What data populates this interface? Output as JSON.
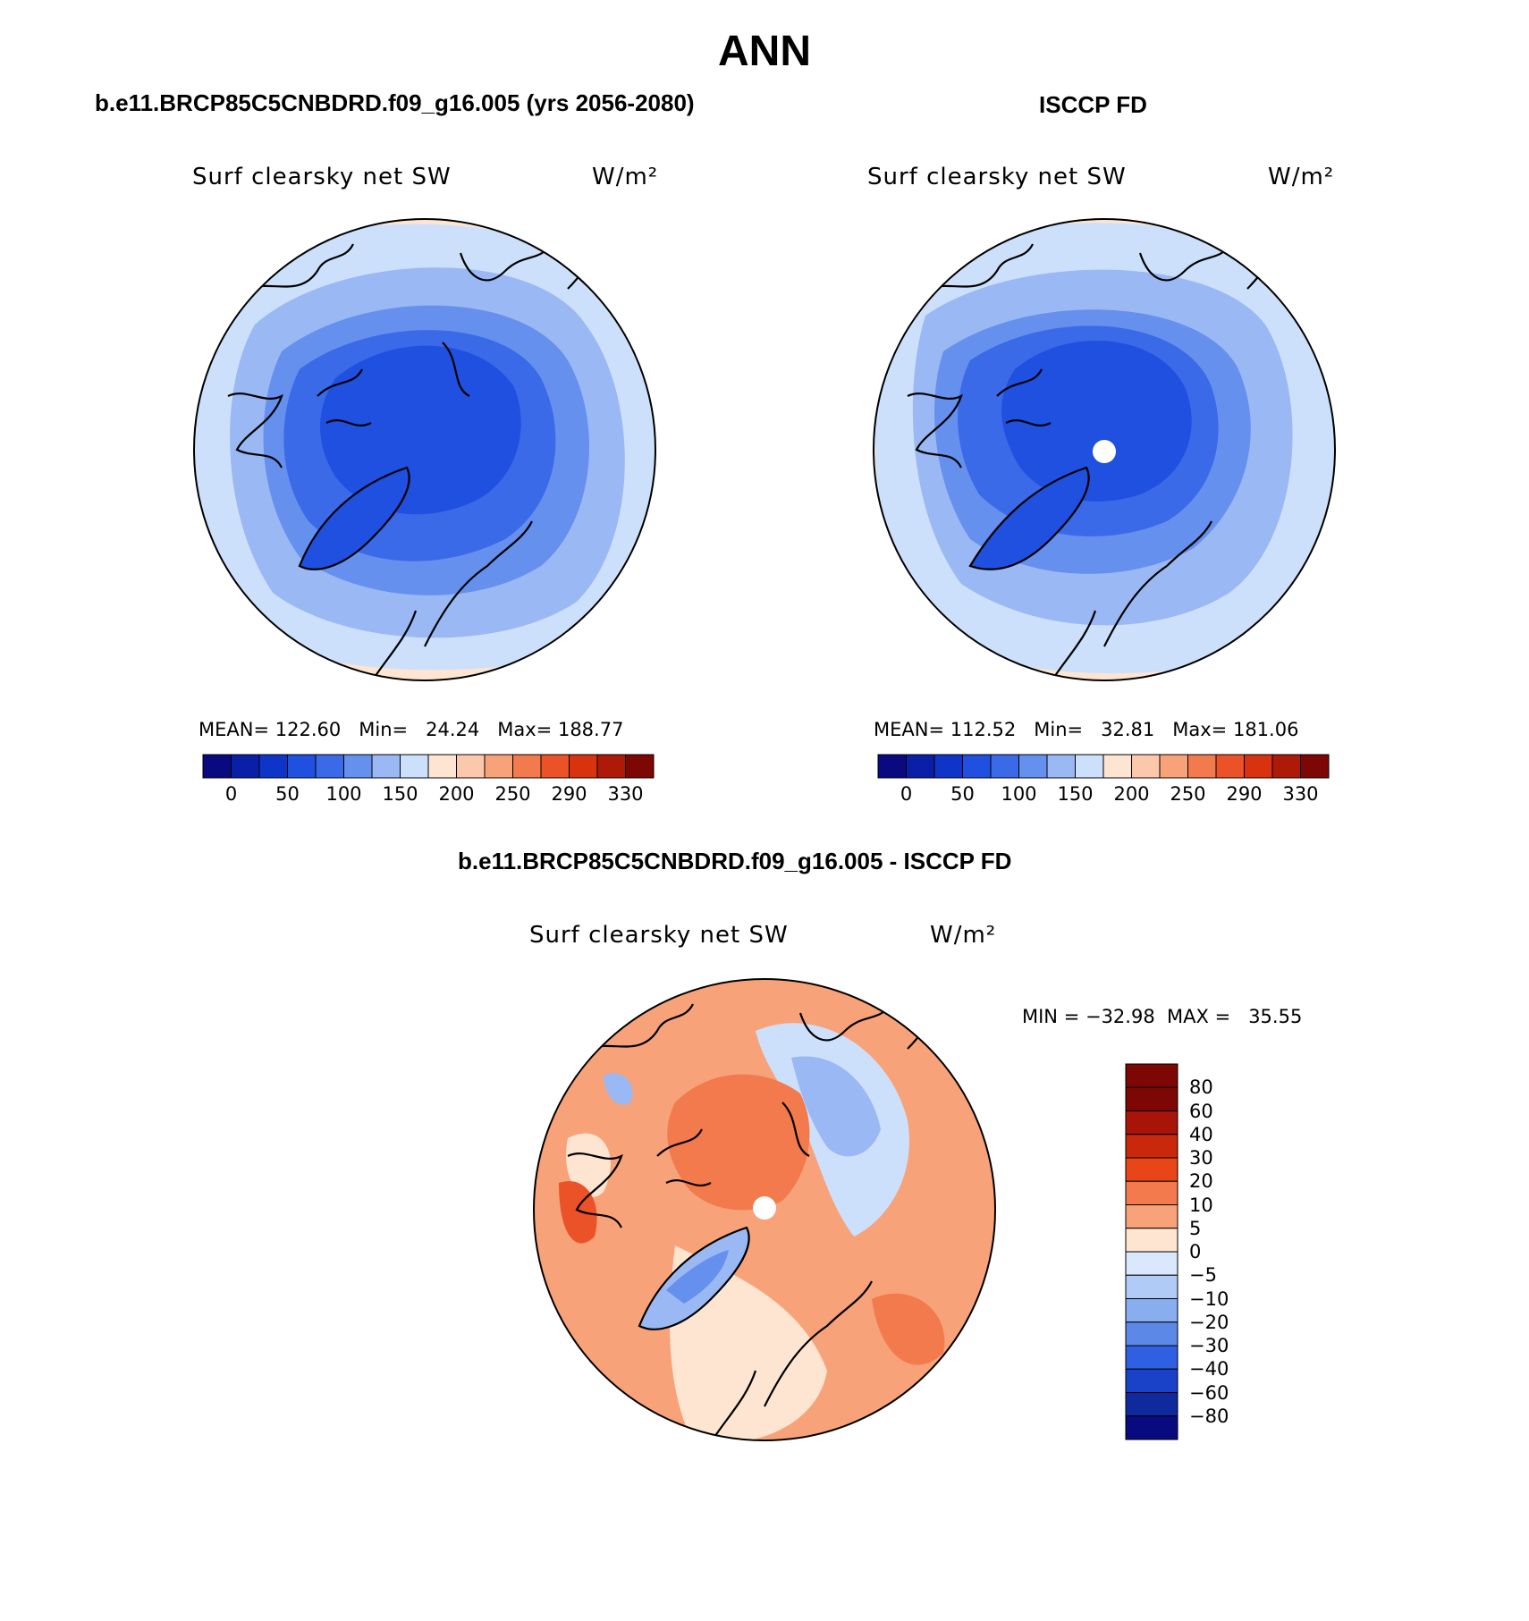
{
  "figure": {
    "title": "ANN",
    "panel_left_case": "b.e11.BRCP85C5CNBDRD.f09_g16.005 (yrs 2056-2080)",
    "panel_right_case": "ISCCP FD",
    "diff_case": "b.e11.BRCP85C5CNBDRD.f09_g16.005 - ISCCP FD"
  },
  "panels": [
    {
      "variable": "Surf clearsky net SW",
      "units": "W/m²",
      "stats": "MEAN= 122.60   Min=   24.24   Max= 188.77"
    },
    {
      "variable": "Surf clearsky net SW",
      "units": "W/m²",
      "stats": "MEAN= 112.52   Min=   32.81   Max= 181.06"
    }
  ],
  "diff_panel": {
    "variable": "Surf clearsky net SW",
    "units": "W/m²",
    "stats": "MIN = −32.98  MAX =   35.55"
  },
  "abs_colorbar": {
    "colors": [
      "#0a0a80",
      "#0a1fa8",
      "#0f35c8",
      "#1f50e0",
      "#3a6ae8",
      "#6690ee",
      "#9ab8f3",
      "#cde0fb",
      "#fde5d2",
      "#fcc8ac",
      "#f8a27a",
      "#f27a4c",
      "#ec5228",
      "#d8320e",
      "#ae1a08",
      "#7d0704"
    ],
    "tick_labels": [
      "0",
      "50",
      "100",
      "150",
      "200",
      "250",
      "290",
      "330"
    ]
  },
  "diff_colorbar": {
    "colors_top_to_bottom": [
      "#7d0704",
      "#a81408",
      "#c9280c",
      "#e84618",
      "#f27a4c",
      "#f8a27a",
      "#fde5d2",
      "#d9e8fc",
      "#b0cbf5",
      "#88aef0",
      "#5c89e8",
      "#2f60e2",
      "#1a42c8",
      "#0f2a9c",
      "#0a0a80"
    ],
    "tick_labels": [
      "80",
      "60",
      "40",
      "30",
      "20",
      "10",
      "5",
      "0",
      "−5",
      "−10",
      "−20",
      "−30",
      "−40",
      "−60",
      "−80"
    ]
  },
  "map_colors": {
    "blue_deep": "#1f50e0",
    "blue_mid": "#3a6ae8",
    "blue_light": "#6690ee",
    "blue_pale": "#9ab8f3",
    "blue_faint": "#cde0fb",
    "peach": "#fde5d2",
    "orange_light": "#f8a27a",
    "orange": "#f27a4c",
    "orange_deep": "#ec5228"
  }
}
